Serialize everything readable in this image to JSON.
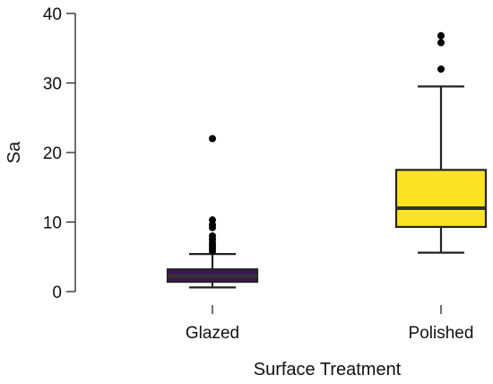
{
  "chart_data": {
    "type": "boxplot",
    "xlabel": "Surface Treatment",
    "ylabel": "Sa",
    "ylim": [
      0,
      40
    ],
    "yticks": [
      0,
      10,
      20,
      30,
      40
    ],
    "grid": false,
    "categories": [
      "Glazed",
      "Polished"
    ],
    "series": [
      {
        "category": "Glazed",
        "color": "#3f1655",
        "whisker_low": 0.6,
        "q1": 1.4,
        "median": 2.2,
        "q3": 3.2,
        "whisker_high": 5.4,
        "outliers": [
          5.8,
          6.2,
          6.6,
          7.0,
          7.5,
          8.0,
          9.2,
          9.6,
          10.3,
          22.0
        ]
      },
      {
        "category": "Polished",
        "color": "#fce324",
        "whisker_low": 5.6,
        "q1": 9.3,
        "median": 12.0,
        "q3": 17.5,
        "whisker_high": 29.5,
        "outliers": [
          32.0,
          35.8,
          36.8
        ]
      }
    ]
  }
}
